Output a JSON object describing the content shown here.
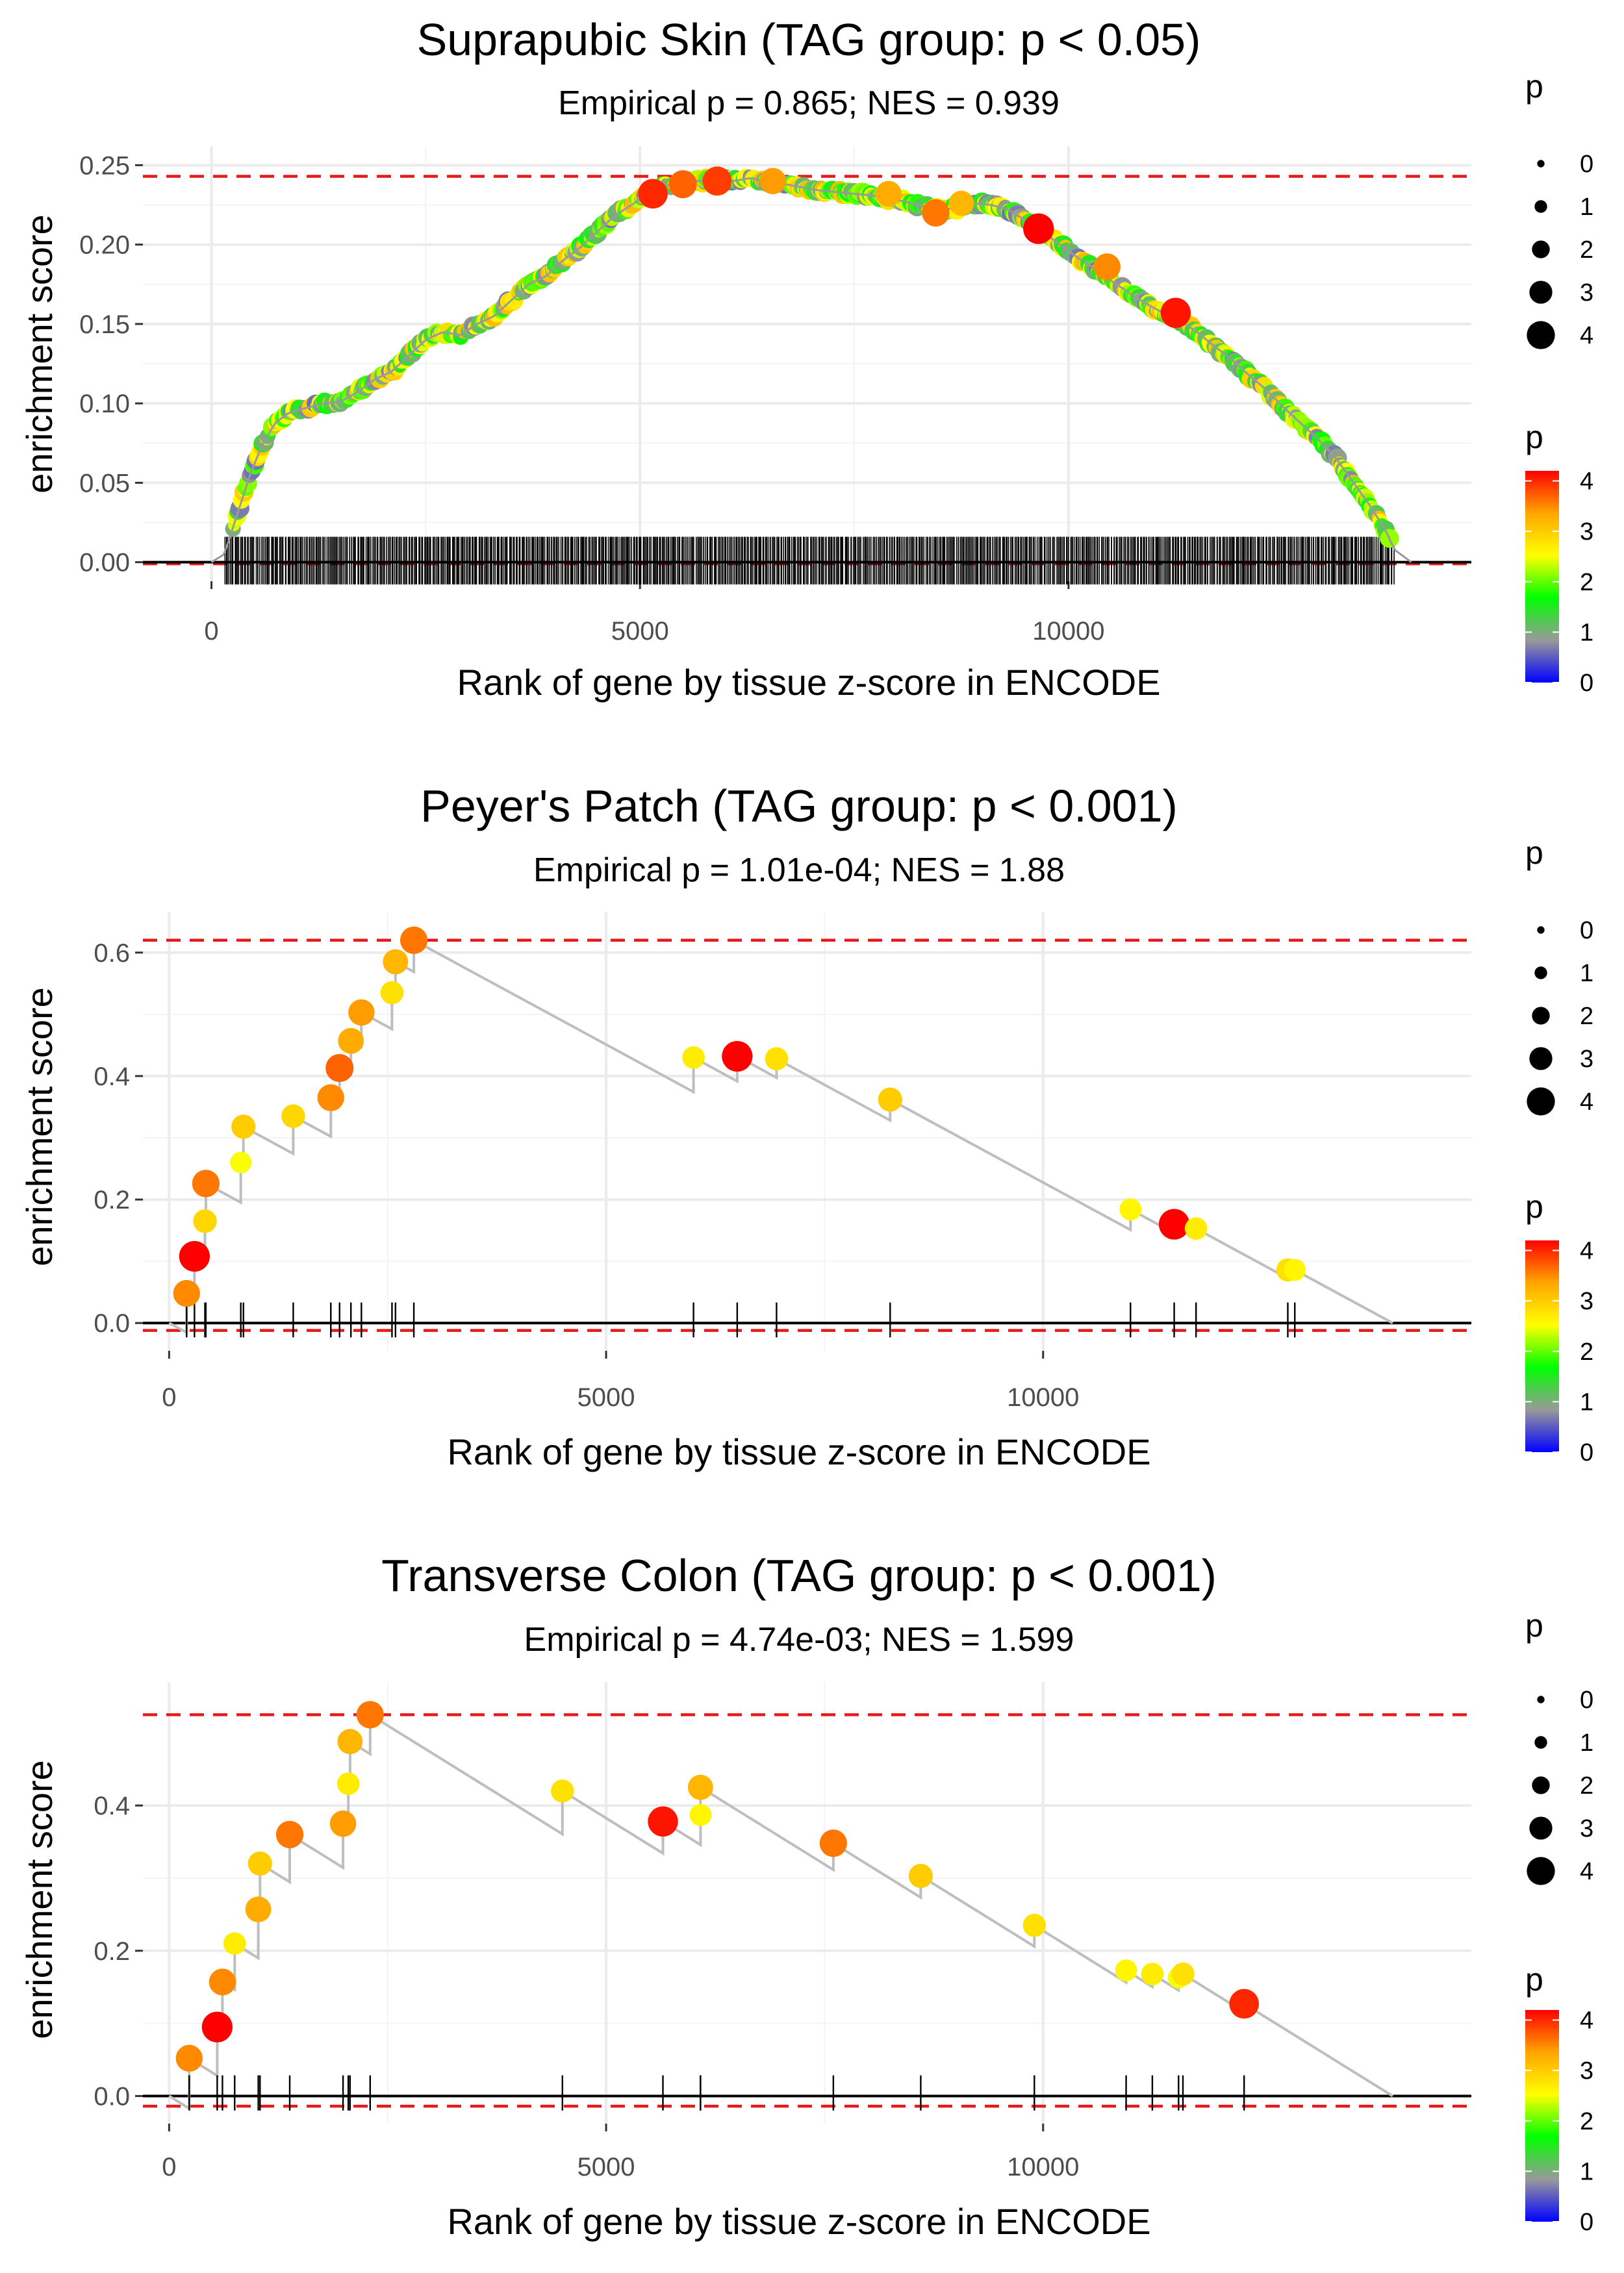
{
  "colors": {
    "panel_bg": "#ffffff",
    "grid": "#ebebeb",
    "dashed_line": "#e41a1c",
    "curve_line": "#bebebe",
    "zero_line": "#000000",
    "tick_marks": "#000000",
    "gradient_stops": [
      "#0000ff",
      "#999999",
      "#00ff00",
      "#ffff00",
      "#ffa500",
      "#ff0000"
    ]
  },
  "legend": {
    "size_title": "p",
    "size_labels": [
      "0",
      "1",
      "2",
      "3",
      "4"
    ],
    "color_title": "p",
    "color_labels": [
      "4",
      "3",
      "2",
      "1",
      "0"
    ],
    "color_range": [
      0,
      4.2
    ]
  },
  "chart_data": [
    {
      "type": "line",
      "title": "Suprapubic Skin (TAG group: p < 0.05)",
      "subtitle": "Empirical p = 0.865; NES = 0.939",
      "xlabel": "Rank of gene by tissue z-score in ENCODE",
      "ylabel": "enrichment score",
      "xlim": [
        -800,
        14700
      ],
      "ylim": [
        -0.012,
        0.262
      ],
      "xticks": [
        0,
        5000,
        10000
      ],
      "xtick_labels": [
        "0",
        "5000",
        "10000"
      ],
      "yticks": [
        0,
        0.05,
        0.1,
        0.15,
        0.2,
        0.25
      ],
      "ytick_labels": [
        "0.00",
        "0.05",
        "0.10",
        "0.15",
        "0.20",
        "0.25"
      ],
      "dashed_max": 0.243,
      "dashed_min": -0.001,
      "dense": true,
      "n_genes": 14000,
      "n_hits": 840,
      "hit_range": [
        150,
        13800
      ],
      "curve": {
        "x": [
          0,
          150,
          300,
          450,
          600,
          750,
          900,
          1100,
          1300,
          1500,
          1700,
          1900,
          2100,
          2300,
          2500,
          2700,
          2900,
          3100,
          3300,
          3500,
          3700,
          3900,
          4100,
          4300,
          4500,
          4700,
          4900,
          5100,
          5300,
          5500,
          5700,
          5900,
          6100,
          6300,
          6500,
          6700,
          6900,
          7100,
          7300,
          7500,
          7700,
          7900,
          8100,
          8300,
          8500,
          8700,
          8900,
          9100,
          9300,
          9500,
          9700,
          9900,
          10100,
          10300,
          10500,
          10700,
          10900,
          11100,
          11300,
          11500,
          11700,
          11900,
          12100,
          12300,
          12500,
          12700,
          12900,
          13100,
          13300,
          13500,
          13700,
          13800,
          14000
        ],
        "y": [
          0,
          0.005,
          0.03,
          0.055,
          0.075,
          0.088,
          0.094,
          0.097,
          0.1,
          0.101,
          0.107,
          0.115,
          0.12,
          0.13,
          0.14,
          0.145,
          0.143,
          0.15,
          0.155,
          0.165,
          0.175,
          0.18,
          0.19,
          0.198,
          0.208,
          0.218,
          0.225,
          0.232,
          0.237,
          0.24,
          0.24,
          0.241,
          0.24,
          0.242,
          0.239,
          0.238,
          0.236,
          0.234,
          0.233,
          0.232,
          0.231,
          0.229,
          0.227,
          0.224,
          0.222,
          0.223,
          0.226,
          0.225,
          0.222,
          0.215,
          0.208,
          0.2,
          0.192,
          0.185,
          0.177,
          0.17,
          0.163,
          0.157,
          0.152,
          0.145,
          0.136,
          0.128,
          0.118,
          0.109,
          0.098,
          0.088,
          0.078,
          0.067,
          0.052,
          0.037,
          0.02,
          0.008,
          0
        ]
      },
      "highlight_points": [
        {
          "x": 5150,
          "y": 0.232,
          "p": 4.0
        },
        {
          "x": 5500,
          "y": 0.238,
          "p": 3.7
        },
        {
          "x": 5900,
          "y": 0.24,
          "p": 3.9
        },
        {
          "x": 6550,
          "y": 0.24,
          "p": 3.4
        },
        {
          "x": 7900,
          "y": 0.232,
          "p": 3.3
        },
        {
          "x": 8450,
          "y": 0.22,
          "p": 3.6
        },
        {
          "x": 8750,
          "y": 0.226,
          "p": 3.2
        },
        {
          "x": 9650,
          "y": 0.21,
          "p": 4.2
        },
        {
          "x": 10450,
          "y": 0.186,
          "p": 3.5
        },
        {
          "x": 11250,
          "y": 0.157,
          "p": 4.1
        }
      ]
    },
    {
      "type": "line",
      "title": "Peyer's Patch (TAG group: p < 0.001)",
      "subtitle": "Empirical p = 1.01e-04; NES = 1.88",
      "xlabel": "Rank of gene by tissue z-score in ENCODE",
      "ylabel": "enrichment score",
      "xlim": [
        -300,
        14900
      ],
      "ylim": [
        -0.045,
        0.665
      ],
      "xticks": [
        0,
        5000,
        10000
      ],
      "xtick_labels": [
        "0",
        "5000",
        "10000"
      ],
      "yticks": [
        0,
        0.2,
        0.4,
        0.6
      ],
      "ytick_labels": [
        "0.0",
        "0.2",
        "0.4",
        "0.6"
      ],
      "dashed_max": 0.62,
      "dashed_min": -0.012,
      "n_genes": 14000,
      "hits": [
        {
          "x": 200,
          "y": 0.048,
          "p": 3.5
        },
        {
          "x": 290,
          "y": 0.108,
          "p": 4.2
        },
        {
          "x": 410,
          "y": 0.165,
          "p": 2.9
        },
        {
          "x": 420,
          "y": 0.226,
          "p": 3.6
        },
        {
          "x": 820,
          "y": 0.26,
          "p": 2.5
        },
        {
          "x": 850,
          "y": 0.318,
          "p": 3.0
        },
        {
          "x": 1420,
          "y": 0.335,
          "p": 2.9
        },
        {
          "x": 1850,
          "y": 0.365,
          "p": 3.5
        },
        {
          "x": 1950,
          "y": 0.413,
          "p": 3.7
        },
        {
          "x": 2080,
          "y": 0.457,
          "p": 3.3
        },
        {
          "x": 2200,
          "y": 0.503,
          "p": 3.4
        },
        {
          "x": 2550,
          "y": 0.535,
          "p": 2.8
        },
        {
          "x": 2590,
          "y": 0.585,
          "p": 3.2
        },
        {
          "x": 2800,
          "y": 0.62,
          "p": 3.6
        },
        {
          "x": 6000,
          "y": 0.43,
          "p": 2.7
        },
        {
          "x": 6500,
          "y": 0.432,
          "p": 4.2
        },
        {
          "x": 6950,
          "y": 0.428,
          "p": 2.8
        },
        {
          "x": 8250,
          "y": 0.362,
          "p": 3.0
        },
        {
          "x": 11000,
          "y": 0.184,
          "p": 2.6
        },
        {
          "x": 11500,
          "y": 0.16,
          "p": 4.2
        },
        {
          "x": 11750,
          "y": 0.153,
          "p": 2.7
        },
        {
          "x": 12800,
          "y": 0.086,
          "p": 2.8
        },
        {
          "x": 12880,
          "y": 0.086,
          "p": 2.6
        }
      ]
    },
    {
      "type": "line",
      "title": "Transverse Colon (TAG group: p < 0.001)",
      "subtitle": "Empirical p = 4.74e-03; NES = 1.599",
      "xlabel": "Rank of gene by tissue z-score in ENCODE",
      "ylabel": "enrichment score",
      "xlim": [
        -300,
        14900
      ],
      "ylim": [
        -0.038,
        0.57
      ],
      "xticks": [
        0,
        5000,
        10000
      ],
      "xtick_labels": [
        "0",
        "5000",
        "10000"
      ],
      "yticks": [
        0,
        0.2,
        0.4
      ],
      "ytick_labels": [
        "0.0",
        "0.2",
        "0.4"
      ],
      "dashed_max": 0.525,
      "dashed_min": -0.014,
      "n_genes": 14000,
      "hits": [
        {
          "x": 230,
          "y": 0.052,
          "p": 3.5
        },
        {
          "x": 550,
          "y": 0.095,
          "p": 4.2
        },
        {
          "x": 610,
          "y": 0.157,
          "p": 3.5
        },
        {
          "x": 750,
          "y": 0.21,
          "p": 2.7
        },
        {
          "x": 1020,
          "y": 0.257,
          "p": 3.3
        },
        {
          "x": 1040,
          "y": 0.32,
          "p": 3.0
        },
        {
          "x": 1380,
          "y": 0.36,
          "p": 3.6
        },
        {
          "x": 1990,
          "y": 0.375,
          "p": 3.4
        },
        {
          "x": 2050,
          "y": 0.43,
          "p": 2.7
        },
        {
          "x": 2070,
          "y": 0.488,
          "p": 3.2
        },
        {
          "x": 2300,
          "y": 0.525,
          "p": 3.6
        },
        {
          "x": 4500,
          "y": 0.42,
          "p": 2.8
        },
        {
          "x": 5650,
          "y": 0.378,
          "p": 4.1
        },
        {
          "x": 6080,
          "y": 0.387,
          "p": 2.6
        },
        {
          "x": 6080,
          "y": 0.425,
          "p": 3.2
        },
        {
          "x": 7600,
          "y": 0.348,
          "p": 3.6
        },
        {
          "x": 8600,
          "y": 0.303,
          "p": 3.0
        },
        {
          "x": 9900,
          "y": 0.235,
          "p": 2.8
        },
        {
          "x": 10950,
          "y": 0.173,
          "p": 2.6
        },
        {
          "x": 11250,
          "y": 0.168,
          "p": 2.7
        },
        {
          "x": 11550,
          "y": 0.163,
          "p": 2.5
        },
        {
          "x": 11600,
          "y": 0.168,
          "p": 2.8
        },
        {
          "x": 12300,
          "y": 0.127,
          "p": 4.0
        }
      ]
    }
  ]
}
